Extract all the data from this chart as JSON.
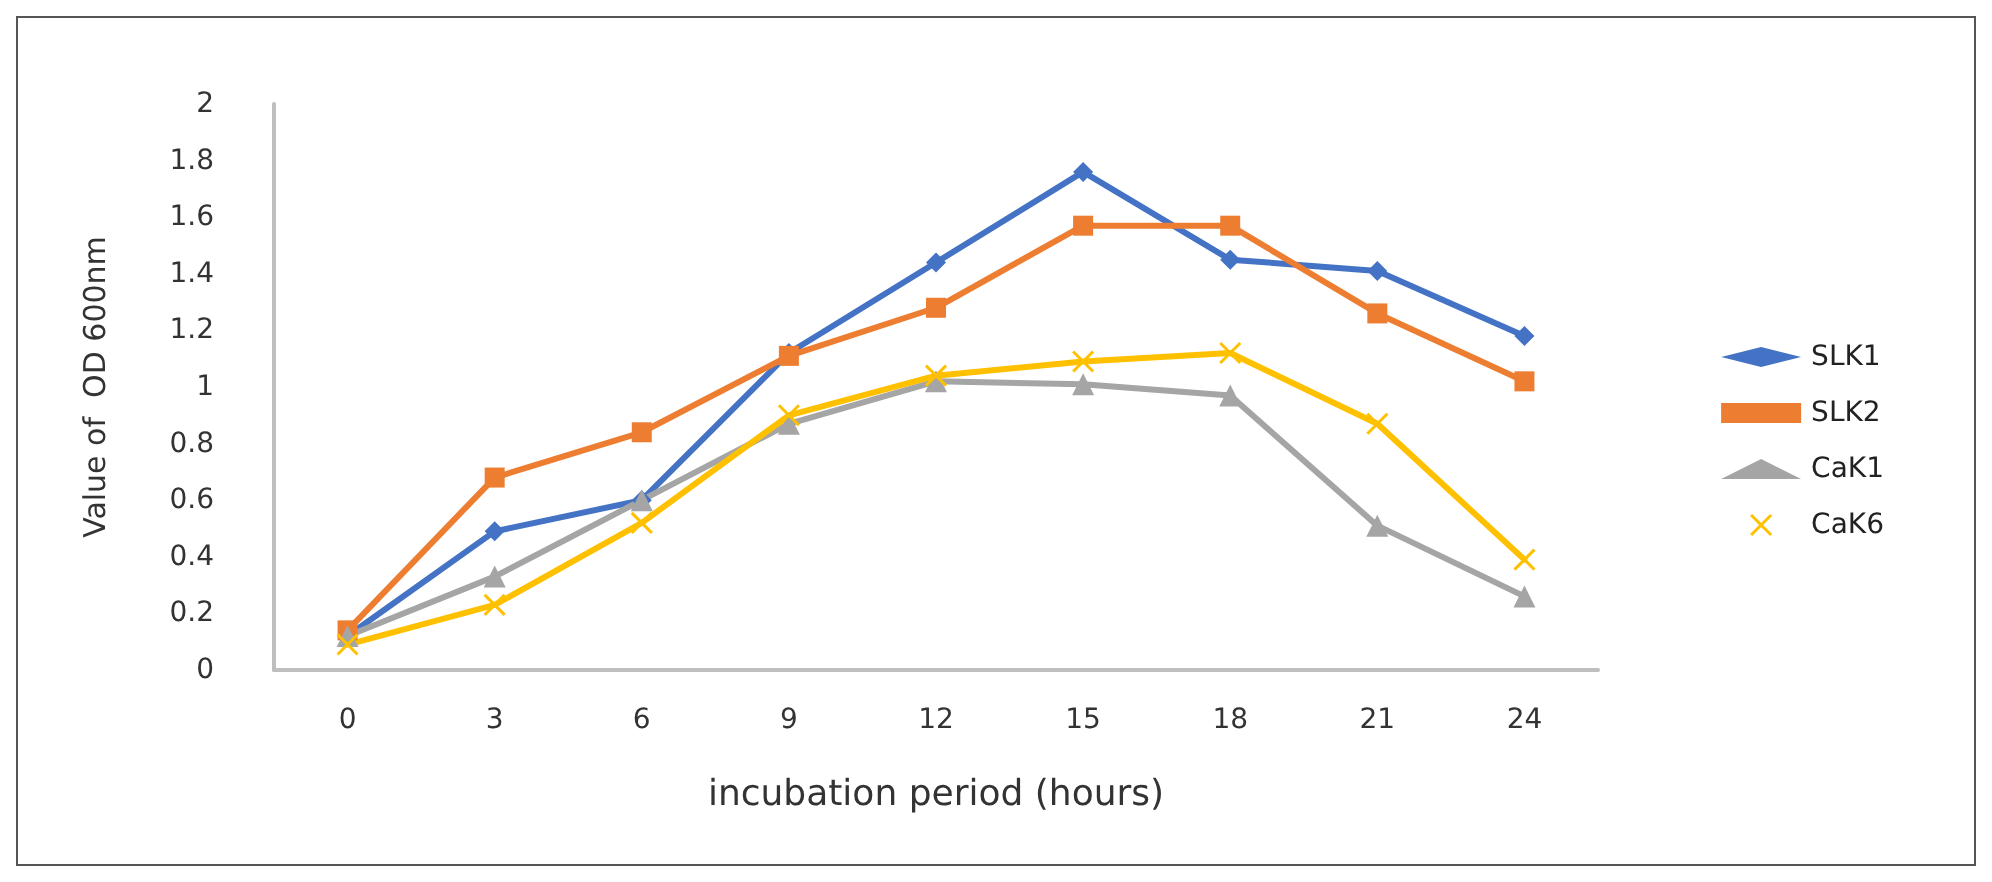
{
  "chart_data": {
    "type": "line",
    "xlabel": "incubation period (hours)",
    "ylabel": "Value of  OD 600nm",
    "categories": [
      "0",
      "3",
      "6",
      "9",
      "12",
      "15",
      "18",
      "21",
      "24"
    ],
    "series": [
      {
        "name": "SLK1",
        "color": "#4472c4",
        "marker": "diamond",
        "values": [
          0.12,
          0.49,
          0.6,
          1.12,
          1.44,
          1.76,
          1.45,
          1.41,
          1.18
        ]
      },
      {
        "name": "SLK2",
        "color": "#ed7d31",
        "marker": "square",
        "values": [
          0.14,
          0.68,
          0.84,
          1.11,
          1.28,
          1.57,
          1.57,
          1.26,
          1.02
        ]
      },
      {
        "name": "CaK1",
        "color": "#a5a5a5",
        "marker": "triangle",
        "values": [
          0.12,
          0.33,
          0.6,
          0.87,
          1.02,
          1.01,
          0.97,
          0.51,
          0.26
        ]
      },
      {
        "name": "CaK6",
        "color": "#ffc000",
        "marker": "cross",
        "values": [
          0.09,
          0.23,
          0.52,
          0.9,
          1.04,
          1.09,
          1.12,
          0.87,
          0.39
        ]
      }
    ],
    "ylim": [
      0,
      2
    ],
    "yticks": [
      0,
      0.2,
      0.4,
      0.6,
      0.8,
      1,
      1.2,
      1.4,
      1.6,
      1.8,
      2
    ],
    "grid": false,
    "legend": "right"
  }
}
